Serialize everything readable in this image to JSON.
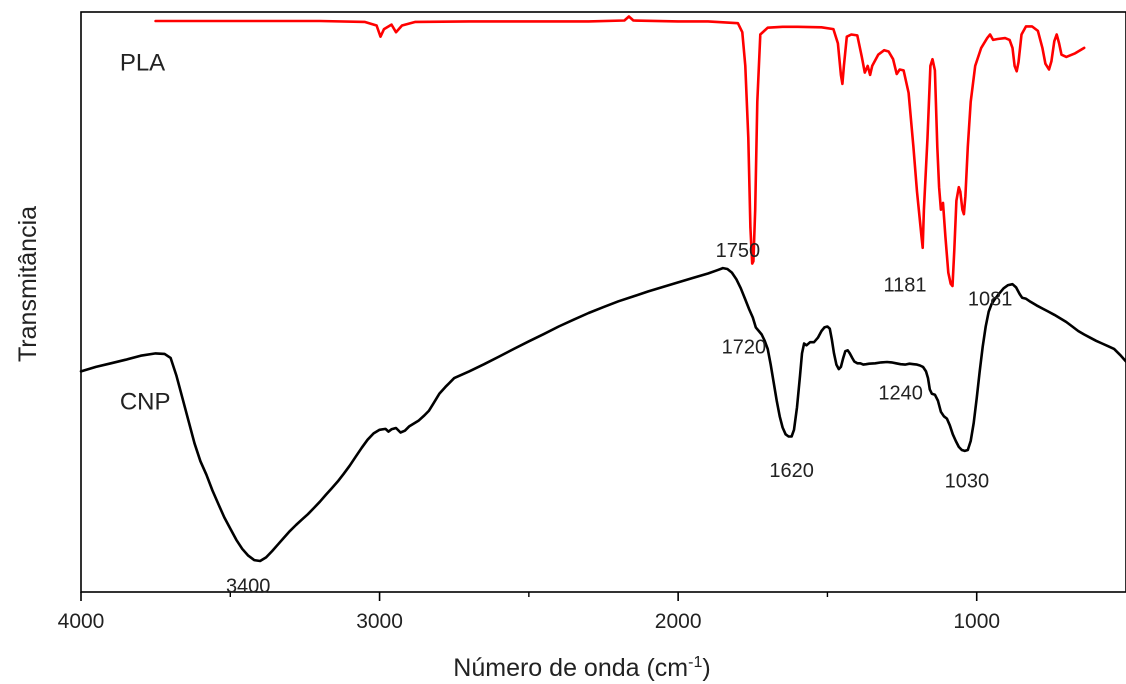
{
  "chart_data": {
    "type": "line",
    "xlabel": "Número de onda (cm",
    "xlabel_sup": "-1",
    "xlabel_close": ")",
    "ylabel": "Transmitância",
    "xlim": [
      4000,
      500
    ],
    "x_ticks": [
      {
        "value": 4000,
        "label": "4000"
      },
      {
        "value": 3000,
        "label": "3000"
      },
      {
        "value": 2000,
        "label": "2000"
      },
      {
        "value": 1000,
        "label": "1000"
      }
    ],
    "x_minor_ticks": [
      3500,
      2500,
      1500
    ],
    "series": [
      {
        "name": "PLA",
        "color": "#ff0000",
        "points": [
          [
            3750,
            0.98
          ],
          [
            3500,
            0.98
          ],
          [
            3200,
            0.98
          ],
          [
            3050,
            0.978
          ],
          [
            3010,
            0.97
          ],
          [
            2997,
            0.945
          ],
          [
            2985,
            0.962
          ],
          [
            2960,
            0.972
          ],
          [
            2945,
            0.955
          ],
          [
            2925,
            0.97
          ],
          [
            2880,
            0.978
          ],
          [
            2700,
            0.979
          ],
          [
            2500,
            0.979
          ],
          [
            2300,
            0.979
          ],
          [
            2180,
            0.981
          ],
          [
            2165,
            0.99
          ],
          [
            2150,
            0.981
          ],
          [
            2000,
            0.979
          ],
          [
            1900,
            0.979
          ],
          [
            1800,
            0.975
          ],
          [
            1785,
            0.955
          ],
          [
            1775,
            0.88
          ],
          [
            1765,
            0.72
          ],
          [
            1758,
            0.52
          ],
          [
            1752,
            0.44
          ],
          [
            1748,
            0.445
          ],
          [
            1742,
            0.56
          ],
          [
            1735,
            0.8
          ],
          [
            1725,
            0.95
          ],
          [
            1700,
            0.965
          ],
          [
            1650,
            0.967
          ],
          [
            1600,
            0.967
          ],
          [
            1520,
            0.966
          ],
          [
            1480,
            0.962
          ],
          [
            1465,
            0.93
          ],
          [
            1455,
            0.86
          ],
          [
            1450,
            0.84
          ],
          [
            1445,
            0.88
          ],
          [
            1435,
            0.945
          ],
          [
            1420,
            0.95
          ],
          [
            1400,
            0.948
          ],
          [
            1385,
            0.9
          ],
          [
            1375,
            0.865
          ],
          [
            1365,
            0.88
          ],
          [
            1357,
            0.86
          ],
          [
            1350,
            0.88
          ],
          [
            1330,
            0.905
          ],
          [
            1310,
            0.915
          ],
          [
            1295,
            0.912
          ],
          [
            1280,
            0.895
          ],
          [
            1268,
            0.862
          ],
          [
            1258,
            0.872
          ],
          [
            1245,
            0.87
          ],
          [
            1228,
            0.82
          ],
          [
            1212,
            0.7
          ],
          [
            1200,
            0.6
          ],
          [
            1191,
            0.54
          ],
          [
            1185,
            0.5
          ],
          [
            1181,
            0.475
          ],
          [
            1177,
            0.56
          ],
          [
            1165,
            0.72
          ],
          [
            1155,
            0.88
          ],
          [
            1148,
            0.895
          ],
          [
            1140,
            0.87
          ],
          [
            1132,
            0.7
          ],
          [
            1126,
            0.61
          ],
          [
            1120,
            0.56
          ],
          [
            1113,
            0.575
          ],
          [
            1105,
            0.5
          ],
          [
            1095,
            0.42
          ],
          [
            1087,
            0.395
          ],
          [
            1081,
            0.39
          ],
          [
            1075,
            0.47
          ],
          [
            1068,
            0.58
          ],
          [
            1060,
            0.61
          ],
          [
            1055,
            0.6
          ],
          [
            1048,
            0.56
          ],
          [
            1043,
            0.55
          ],
          [
            1038,
            0.59
          ],
          [
            1030,
            0.7
          ],
          [
            1020,
            0.8
          ],
          [
            1005,
            0.88
          ],
          [
            985,
            0.92
          ],
          [
            965,
            0.942
          ],
          [
            955,
            0.95
          ],
          [
            945,
            0.938
          ],
          [
            930,
            0.94
          ],
          [
            905,
            0.942
          ],
          [
            890,
            0.938
          ],
          [
            880,
            0.92
          ],
          [
            873,
            0.88
          ],
          [
            866,
            0.868
          ],
          [
            860,
            0.888
          ],
          [
            850,
            0.95
          ],
          [
            835,
            0.968
          ],
          [
            815,
            0.968
          ],
          [
            795,
            0.958
          ],
          [
            780,
            0.92
          ],
          [
            770,
            0.885
          ],
          [
            758,
            0.872
          ],
          [
            750,
            0.89
          ],
          [
            740,
            0.935
          ],
          [
            732,
            0.95
          ],
          [
            724,
            0.93
          ],
          [
            716,
            0.905
          ],
          [
            700,
            0.9
          ],
          [
            670,
            0.908
          ],
          [
            640,
            0.92
          ]
        ]
      },
      {
        "name": "CNP",
        "color": "#000000",
        "points": [
          [
            4000,
            0.2
          ],
          [
            3950,
            0.21
          ],
          [
            3900,
            0.218
          ],
          [
            3850,
            0.226
          ],
          [
            3800,
            0.235
          ],
          [
            3750,
            0.24
          ],
          [
            3720,
            0.239
          ],
          [
            3700,
            0.23
          ],
          [
            3680,
            0.19
          ],
          [
            3660,
            0.14
          ],
          [
            3640,
            0.09
          ],
          [
            3620,
            0.04
          ],
          [
            3600,
            0.0
          ],
          [
            3580,
            -0.03
          ],
          [
            3560,
            -0.065
          ],
          [
            3540,
            -0.095
          ],
          [
            3520,
            -0.125
          ],
          [
            3500,
            -0.15
          ],
          [
            3480,
            -0.175
          ],
          [
            3460,
            -0.195
          ],
          [
            3440,
            -0.21
          ],
          [
            3420,
            -0.22
          ],
          [
            3400,
            -0.222
          ],
          [
            3380,
            -0.214
          ],
          [
            3360,
            -0.2
          ],
          [
            3340,
            -0.185
          ],
          [
            3320,
            -0.17
          ],
          [
            3300,
            -0.155
          ],
          [
            3280,
            -0.142
          ],
          [
            3260,
            -0.13
          ],
          [
            3240,
            -0.118
          ],
          [
            3220,
            -0.104
          ],
          [
            3200,
            -0.09
          ],
          [
            3180,
            -0.075
          ],
          [
            3160,
            -0.06
          ],
          [
            3140,
            -0.045
          ],
          [
            3120,
            -0.028
          ],
          [
            3100,
            -0.01
          ],
          [
            3080,
            0.01
          ],
          [
            3060,
            0.03
          ],
          [
            3040,
            0.048
          ],
          [
            3020,
            0.062
          ],
          [
            3000,
            0.07
          ],
          [
            2980,
            0.072
          ],
          [
            2970,
            0.066
          ],
          [
            2960,
            0.071
          ],
          [
            2945,
            0.074
          ],
          [
            2930,
            0.064
          ],
          [
            2915,
            0.068
          ],
          [
            2900,
            0.078
          ],
          [
            2870,
            0.09
          ],
          [
            2850,
            0.102
          ],
          [
            2835,
            0.112
          ],
          [
            2820,
            0.128
          ],
          [
            2800,
            0.15
          ],
          [
            2780,
            0.165
          ],
          [
            2750,
            0.185
          ],
          [
            2700,
            0.2
          ],
          [
            2650,
            0.216
          ],
          [
            2600,
            0.233
          ],
          [
            2550,
            0.25
          ],
          [
            2500,
            0.267
          ],
          [
            2450,
            0.283
          ],
          [
            2400,
            0.3
          ],
          [
            2350,
            0.315
          ],
          [
            2300,
            0.33
          ],
          [
            2250,
            0.343
          ],
          [
            2200,
            0.356
          ],
          [
            2150,
            0.367
          ],
          [
            2100,
            0.378
          ],
          [
            2050,
            0.388
          ],
          [
            2000,
            0.398
          ],
          [
            1950,
            0.408
          ],
          [
            1900,
            0.418
          ],
          [
            1870,
            0.425
          ],
          [
            1850,
            0.43
          ],
          [
            1835,
            0.428
          ],
          [
            1820,
            0.42
          ],
          [
            1805,
            0.405
          ],
          [
            1790,
            0.385
          ],
          [
            1775,
            0.36
          ],
          [
            1762,
            0.338
          ],
          [
            1750,
            0.32
          ],
          [
            1740,
            0.298
          ],
          [
            1730,
            0.29
          ],
          [
            1720,
            0.282
          ],
          [
            1710,
            0.268
          ],
          [
            1700,
            0.25
          ],
          [
            1690,
            0.215
          ],
          [
            1680,
            0.175
          ],
          [
            1670,
            0.135
          ],
          [
            1660,
            0.1
          ],
          [
            1650,
            0.075
          ],
          [
            1640,
            0.06
          ],
          [
            1630,
            0.055
          ],
          [
            1620,
            0.055
          ],
          [
            1612,
            0.07
          ],
          [
            1602,
            0.12
          ],
          [
            1592,
            0.19
          ],
          [
            1585,
            0.24
          ],
          [
            1578,
            0.262
          ],
          [
            1570,
            0.258
          ],
          [
            1558,
            0.265
          ],
          [
            1545,
            0.265
          ],
          [
            1532,
            0.275
          ],
          [
            1520,
            0.29
          ],
          [
            1510,
            0.298
          ],
          [
            1500,
            0.3
          ],
          [
            1492,
            0.295
          ],
          [
            1485,
            0.27
          ],
          [
            1478,
            0.24
          ],
          [
            1470,
            0.215
          ],
          [
            1462,
            0.205
          ],
          [
            1455,
            0.21
          ],
          [
            1448,
            0.228
          ],
          [
            1440,
            0.245
          ],
          [
            1432,
            0.247
          ],
          [
            1425,
            0.24
          ],
          [
            1417,
            0.23
          ],
          [
            1410,
            0.222
          ],
          [
            1400,
            0.218
          ],
          [
            1390,
            0.218
          ],
          [
            1380,
            0.215
          ],
          [
            1370,
            0.216
          ],
          [
            1360,
            0.217
          ],
          [
            1340,
            0.218
          ],
          [
            1320,
            0.22
          ],
          [
            1300,
            0.221
          ],
          [
            1285,
            0.22
          ],
          [
            1270,
            0.218
          ],
          [
            1255,
            0.216
          ],
          [
            1240,
            0.215
          ],
          [
            1225,
            0.217
          ],
          [
            1212,
            0.216
          ],
          [
            1200,
            0.215
          ],
          [
            1190,
            0.213
          ],
          [
            1180,
            0.21
          ],
          [
            1170,
            0.2
          ],
          [
            1163,
            0.185
          ],
          [
            1157,
            0.16
          ],
          [
            1150,
            0.15
          ],
          [
            1140,
            0.148
          ],
          [
            1130,
            0.135
          ],
          [
            1120,
            0.11
          ],
          [
            1110,
            0.1
          ],
          [
            1100,
            0.095
          ],
          [
            1090,
            0.08
          ],
          [
            1080,
            0.06
          ],
          [
            1070,
            0.045
          ],
          [
            1060,
            0.032
          ],
          [
            1050,
            0.025
          ],
          [
            1040,
            0.023
          ],
          [
            1030,
            0.025
          ],
          [
            1020,
            0.045
          ],
          [
            1010,
            0.085
          ],
          [
            1000,
            0.14
          ],
          [
            990,
            0.2
          ],
          [
            980,
            0.255
          ],
          [
            970,
            0.3
          ],
          [
            960,
            0.333
          ],
          [
            950,
            0.35
          ],
          [
            940,
            0.36
          ],
          [
            925,
            0.373
          ],
          [
            910,
            0.385
          ],
          [
            895,
            0.392
          ],
          [
            880,
            0.394
          ],
          [
            868,
            0.387
          ],
          [
            856,
            0.372
          ],
          [
            848,
            0.364
          ],
          [
            836,
            0.362
          ],
          [
            820,
            0.355
          ],
          [
            800,
            0.347
          ],
          [
            780,
            0.34
          ],
          [
            760,
            0.333
          ],
          [
            740,
            0.326
          ],
          [
            720,
            0.318
          ],
          [
            700,
            0.31
          ],
          [
            680,
            0.3
          ],
          [
            660,
            0.29
          ],
          [
            640,
            0.282
          ],
          [
            620,
            0.275
          ],
          [
            600,
            0.268
          ],
          [
            580,
            0.262
          ],
          [
            560,
            0.256
          ],
          [
            540,
            0.25
          ],
          [
            520,
            0.237
          ],
          [
            500,
            0.222
          ]
        ]
      }
    ],
    "series_labels": [
      {
        "series": "PLA",
        "text": "PLA",
        "x": 3870,
        "y": 0.87,
        "color": "#ff0000"
      },
      {
        "series": "CNP",
        "text": "CNP",
        "x": 3870,
        "y": 0.115,
        "color": "#222222"
      }
    ],
    "annotations": [
      {
        "text": "1750",
        "x": 1800,
        "y": 0.455,
        "color": "#ff0000"
      },
      {
        "text": "1181",
        "x": 1240,
        "y": 0.378,
        "color": "#ff0000"
      },
      {
        "text": "1081",
        "x": 955,
        "y": 0.347,
        "color": "#ff0000"
      },
      {
        "text": "1720",
        "x": 1780,
        "y": 0.24,
        "color": "#222222"
      },
      {
        "text": "1620",
        "x": 1620,
        "y": -0.035,
        "color": "#222222"
      },
      {
        "text": "1240",
        "x": 1255,
        "y": 0.137,
        "color": "#222222"
      },
      {
        "text": "1030",
        "x": 1033,
        "y": -0.058,
        "color": "#222222"
      },
      {
        "text": "3400",
        "x": 3440,
        "y": -0.292,
        "color": "#222222"
      }
    ]
  }
}
